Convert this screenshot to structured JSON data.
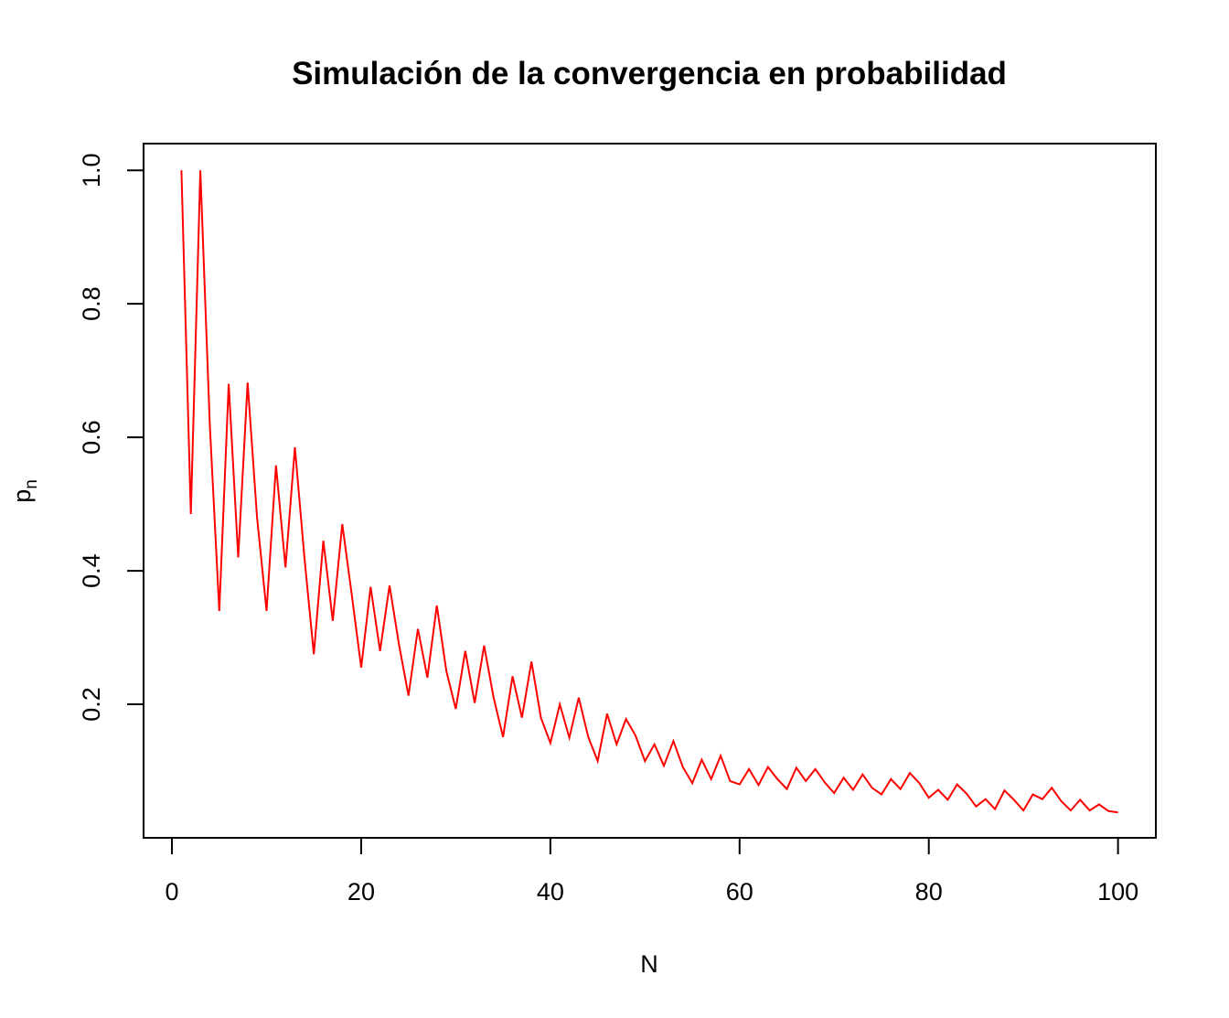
{
  "chart_data": {
    "type": "line",
    "title": "Simulación de la convergencia en probabilidad",
    "xlabel": "N",
    "ylabel": {
      "base": "p",
      "subscript": "n"
    },
    "xlim": [
      -3,
      104
    ],
    "ylim": [
      0.0,
      1.04
    ],
    "x_ticks": [
      0,
      20,
      40,
      60,
      80,
      100
    ],
    "y_ticks": [
      0.2,
      0.4,
      0.6,
      0.8,
      1.0
    ],
    "x_tick_labels": [
      "0",
      "20",
      "40",
      "60",
      "80",
      "100"
    ],
    "y_tick_labels": [
      "0.2",
      "0.4",
      "0.6",
      "0.8",
      "1.0"
    ],
    "grid": false,
    "line_color": "#ff0000",
    "series": [
      {
        "x": [
          1,
          2,
          3,
          4,
          5,
          6,
          7,
          8,
          9,
          10,
          11,
          12,
          13,
          14,
          15,
          16,
          17,
          18,
          19,
          20,
          21,
          22,
          23,
          24,
          25,
          26,
          27,
          28,
          29,
          30,
          31,
          32,
          33,
          34,
          35,
          36,
          37,
          38,
          39,
          40,
          41,
          42,
          43,
          44,
          45,
          46,
          47,
          48,
          49,
          50,
          51,
          52,
          53,
          54,
          55,
          56,
          57,
          58,
          59,
          60,
          61,
          62,
          63,
          64,
          65,
          66,
          67,
          68,
          69,
          70,
          71,
          72,
          73,
          74,
          75,
          76,
          77,
          78,
          79,
          80,
          81,
          82,
          83,
          84,
          85,
          86,
          87,
          88,
          89,
          90,
          91,
          92,
          93,
          94,
          95,
          96,
          97,
          98,
          99,
          100
        ],
        "values": [
          1.0,
          0.485,
          1.0,
          0.62,
          0.34,
          0.68,
          0.42,
          0.682,
          0.48,
          0.34,
          0.558,
          0.405,
          0.585,
          0.42,
          0.275,
          0.445,
          0.325,
          0.47,
          0.365,
          0.255,
          0.376,
          0.28,
          0.378,
          0.29,
          0.213,
          0.313,
          0.24,
          0.348,
          0.25,
          0.193,
          0.28,
          0.202,
          0.288,
          0.21,
          0.151,
          0.242,
          0.18,
          0.264,
          0.18,
          0.142,
          0.2,
          0.15,
          0.21,
          0.151,
          0.115,
          0.186,
          0.14,
          0.178,
          0.153,
          0.115,
          0.14,
          0.108,
          0.145,
          0.106,
          0.082,
          0.117,
          0.088,
          0.123,
          0.085,
          0.08,
          0.103,
          0.079,
          0.106,
          0.088,
          0.073,
          0.105,
          0.085,
          0.103,
          0.083,
          0.067,
          0.09,
          0.072,
          0.095,
          0.075,
          0.065,
          0.088,
          0.073,
          0.097,
          0.082,
          0.06,
          0.072,
          0.057,
          0.08,
          0.066,
          0.047,
          0.058,
          0.043,
          0.071,
          0.057,
          0.041,
          0.065,
          0.058,
          0.075,
          0.055,
          0.041,
          0.057,
          0.041,
          0.05,
          0.04,
          0.038
        ]
      }
    ]
  }
}
